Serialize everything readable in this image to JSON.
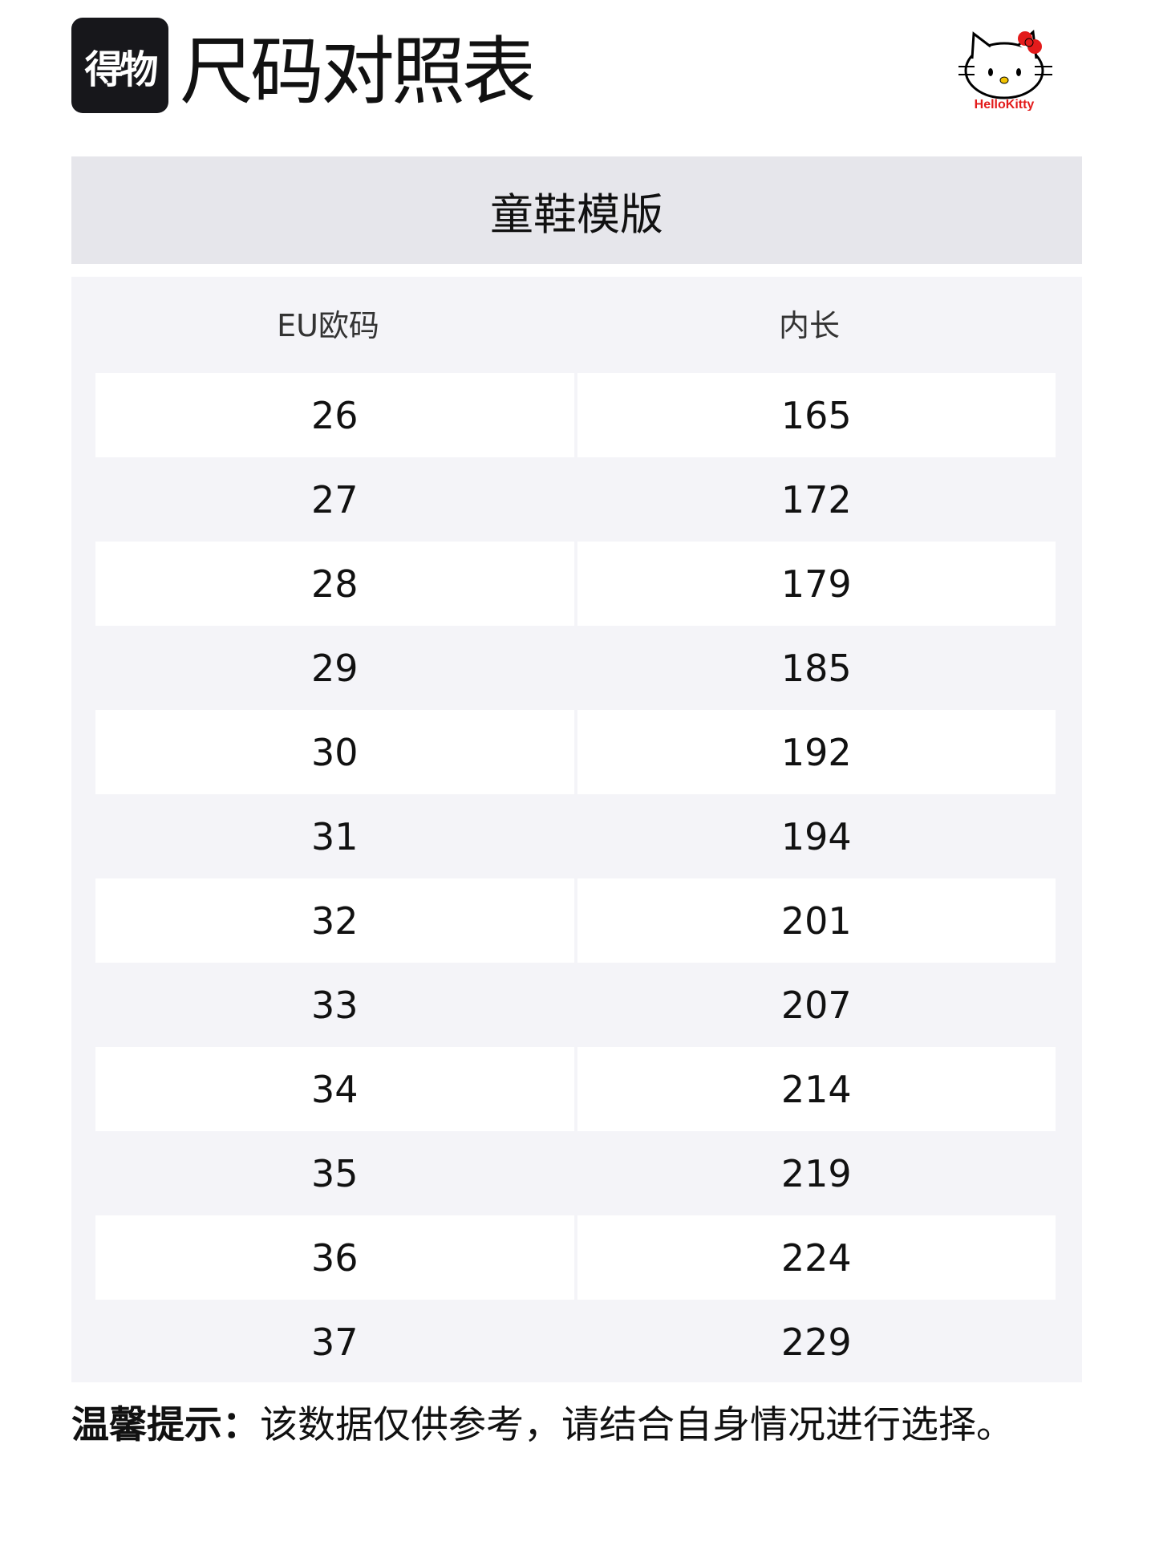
{
  "header": {
    "logo_text": "得物",
    "title": "尺码对照表",
    "brand_logo": "Hello Kitty"
  },
  "band_title": "童鞋模版",
  "table": {
    "columns": [
      "EU欧码",
      "内长"
    ],
    "rows": [
      [
        "26",
        "165"
      ],
      [
        "27",
        "172"
      ],
      [
        "28",
        "179"
      ],
      [
        "29",
        "185"
      ],
      [
        "30",
        "192"
      ],
      [
        "31",
        "194"
      ],
      [
        "32",
        "201"
      ],
      [
        "33",
        "207"
      ],
      [
        "34",
        "214"
      ],
      [
        "35",
        "219"
      ],
      [
        "36",
        "224"
      ],
      [
        "37",
        "229"
      ]
    ]
  },
  "note": {
    "label": "温馨提示：",
    "text": "该数据仅供参考，请结合自身情况进行选择。"
  }
}
